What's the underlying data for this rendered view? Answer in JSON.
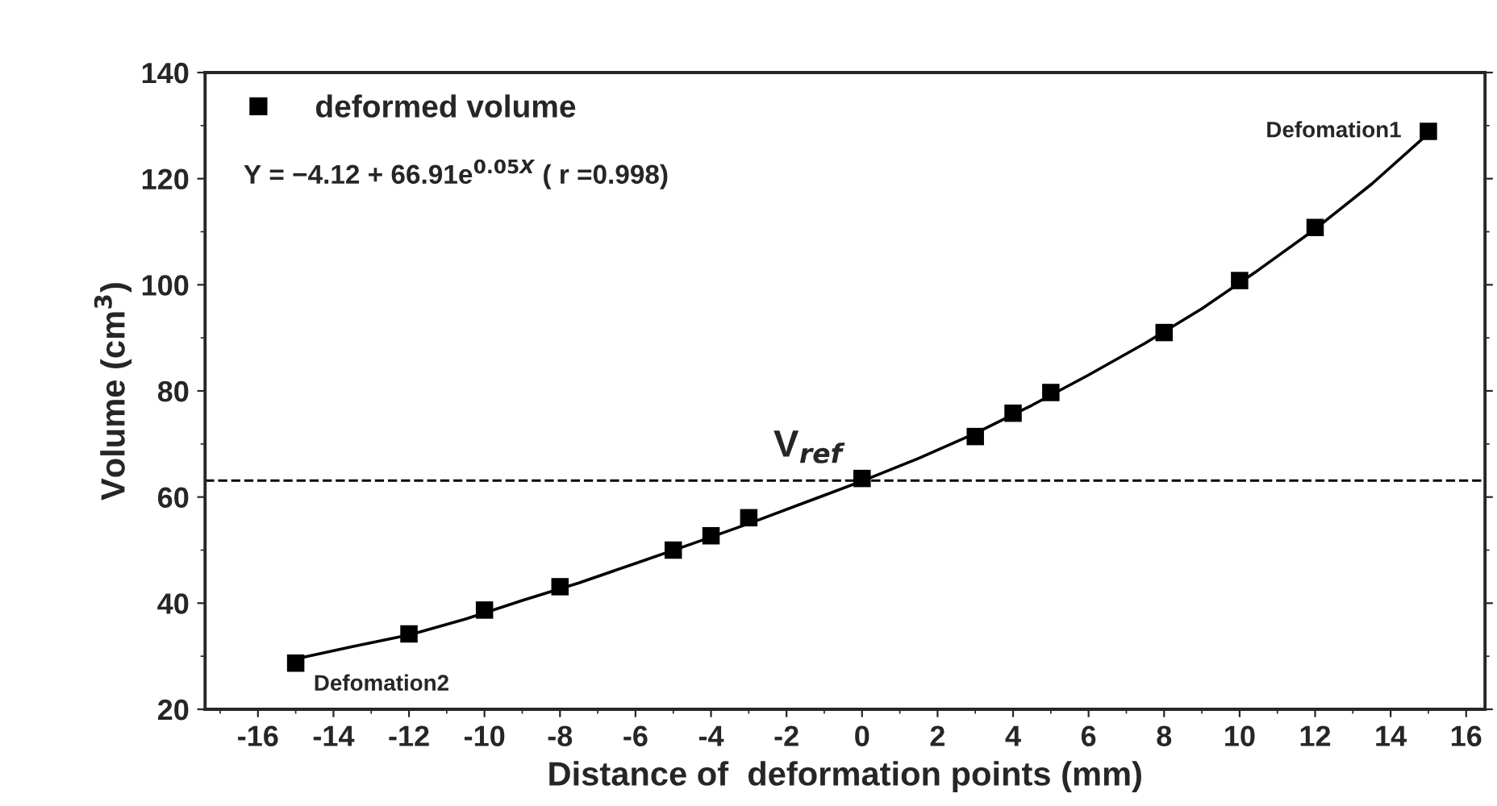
{
  "chart_data": {
    "type": "scatter",
    "xlabel": "Distance of  deformation points (mm)",
    "ylabel": "Volume (cm$^{3}$)",
    "series": [
      {
        "name": "deformed volume",
        "color": "#000000",
        "marker": "square",
        "x": [
          -15,
          -12,
          -10,
          -8,
          -5,
          -4,
          -3,
          0,
          3,
          4,
          5,
          8,
          10,
          12,
          15
        ],
        "values": [
          28.7,
          34.2,
          38.7,
          43.1,
          50.0,
          52.7,
          56.1,
          63.5,
          71.4,
          75.8,
          79.7,
          91.0,
          100.8,
          110.8,
          128.9
        ]
      },
      {
        "type": "line",
        "color": "#000000",
        "marker": "none",
        "line_style": "solid",
        "x": [
          -15,
          -13.5,
          -12,
          -10.5,
          -9,
          -7.5,
          -6,
          -4.5,
          -3,
          -1.5,
          0,
          1.5,
          3,
          4.5,
          6,
          7.5,
          9,
          10.5,
          12,
          13.5,
          15
        ],
        "values": [
          29.5,
          31.8,
          34,
          37,
          40.5,
          43.8,
          47.5,
          51.2,
          55,
          59,
          63,
          67.3,
          72,
          77.3,
          83,
          89,
          95.5,
          102.8,
          110.5,
          119,
          128.5
        ]
      }
    ],
    "xlim": [
      -17.4,
      16.5
    ],
    "xticks": [
      -16,
      -14,
      -12,
      -10,
      -8,
      -6,
      -4,
      -2,
      0,
      2,
      4,
      6,
      8,
      10,
      12,
      14,
      16
    ],
    "ylim": [
      20,
      140
    ],
    "yticks": [
      20,
      40,
      60,
      80,
      100,
      120,
      140
    ],
    "ref_lines": [
      {
        "axis": "y",
        "value": 63.1,
        "label": "V$_{ref}$",
        "color": "#000000",
        "line_style": "dashed"
      }
    ],
    "annotations": [
      "Y = −4.12 + 66.91e$^{0.05X}$ ( r =0.998)",
      {
        "text": "Defomation1",
        "x": 15,
        "y": 128.9
      },
      {
        "text": "Defomation2",
        "x": -15,
        "y": 28.7
      }
    ],
    "legend": "top left",
    "grid": false
  }
}
